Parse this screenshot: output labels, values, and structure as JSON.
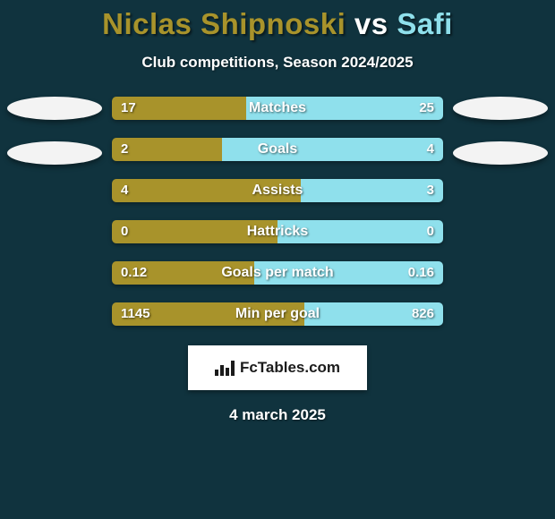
{
  "background_color": "#10333e",
  "title": {
    "player1": "Niclas Shipnoski",
    "vs": "vs",
    "player2": "Safi",
    "player1_color": "#a8932b",
    "vs_color": "#ffffff",
    "player2_color": "#8fe0ec"
  },
  "subtitle": "Club competitions, Season 2024/2025",
  "avatars": {
    "left_color": "#f3f3f3",
    "right_color": "#f3f3f3"
  },
  "bar_colors": {
    "left": "#a8932b",
    "right": "#8fe0ec"
  },
  "stats": [
    {
      "label": "Matches",
      "left_val": "17",
      "right_val": "25",
      "left_pct": 40.5,
      "right_pct": 59.5
    },
    {
      "label": "Goals",
      "left_val": "2",
      "right_val": "4",
      "left_pct": 33.3,
      "right_pct": 66.7
    },
    {
      "label": "Assists",
      "left_val": "4",
      "right_val": "3",
      "left_pct": 57.1,
      "right_pct": 42.9
    },
    {
      "label": "Hattricks",
      "left_val": "0",
      "right_val": "0",
      "left_pct": 50.0,
      "right_pct": 50.0
    },
    {
      "label": "Goals per match",
      "left_val": "0.12",
      "right_val": "0.16",
      "left_pct": 42.9,
      "right_pct": 57.1
    },
    {
      "label": "Min per goal",
      "left_val": "1145",
      "right_val": "826",
      "left_pct": 58.1,
      "right_pct": 41.9
    }
  ],
  "badge_text": "FcTables.com",
  "date_text": "4 march 2025"
}
